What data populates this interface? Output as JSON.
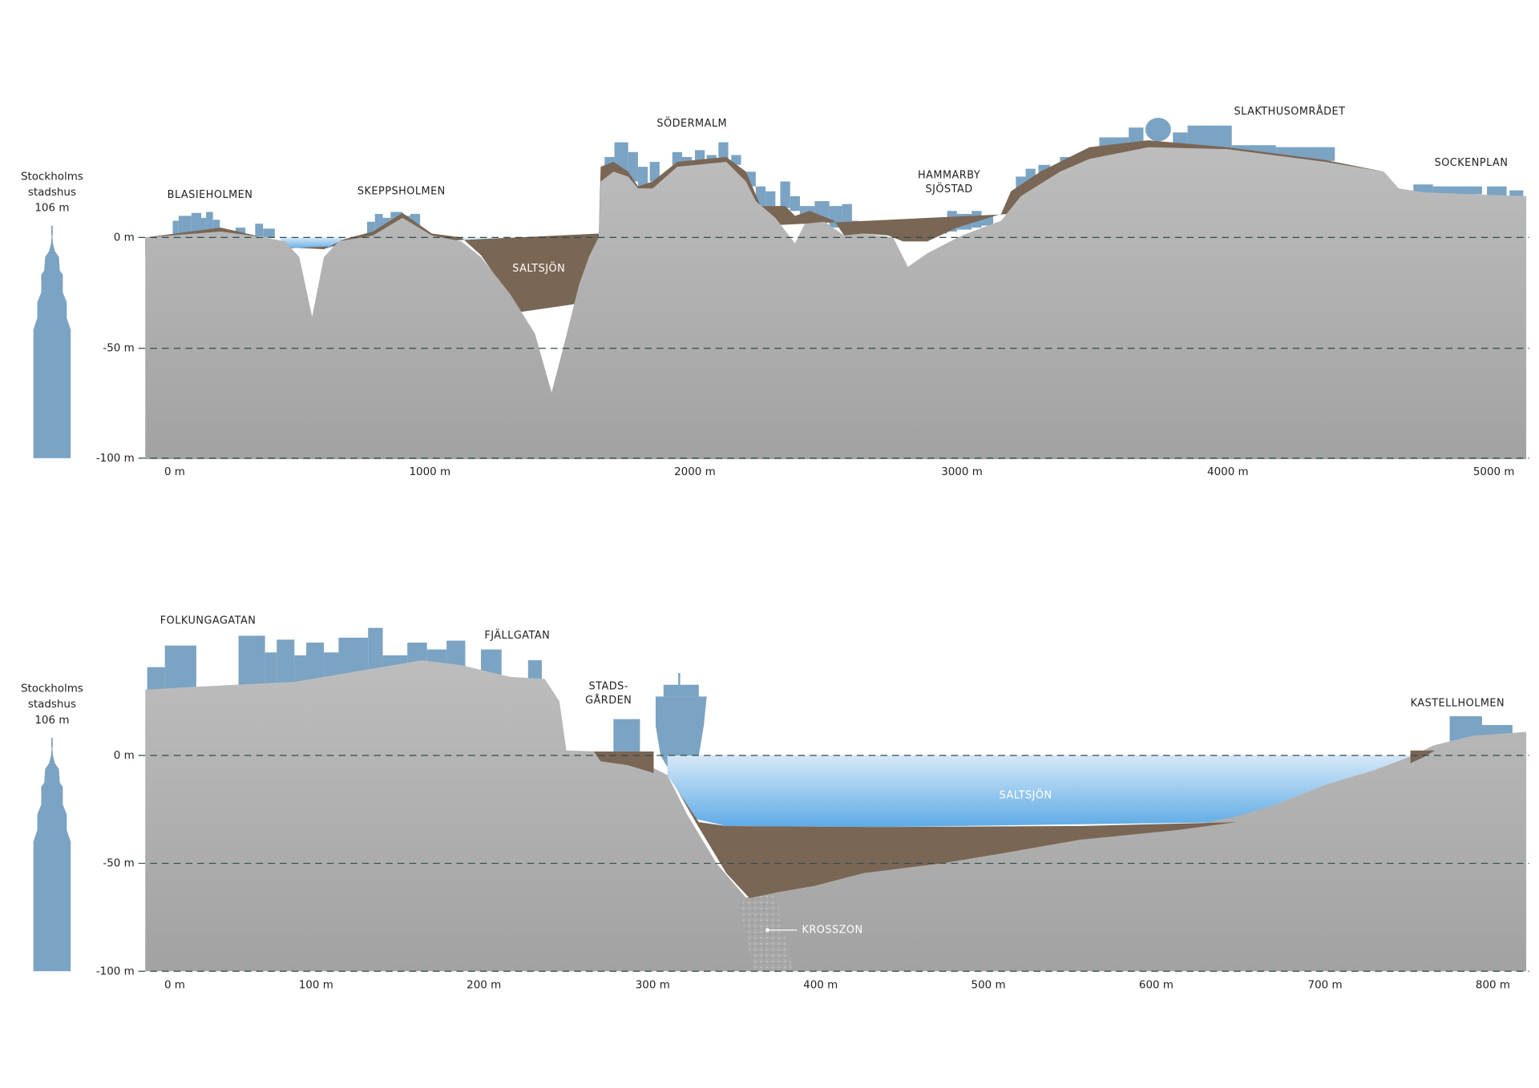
{
  "panels": [
    {
      "tower": {
        "lines": [
          "Stockholms",
          "stadshus",
          "106 m"
        ]
      },
      "depth_labels": [
        "0 m",
        "-50 m",
        "-100 m"
      ],
      "distance_labels": [
        "0 m",
        "1000 m",
        "2000 m",
        "3000 m",
        "4000 m",
        "5000 m"
      ],
      "place_labels": [
        {
          "lines": [
            "BLASIEHOLMEN"
          ]
        },
        {
          "lines": [
            "SKEPPSHOLMEN"
          ]
        },
        {
          "lines": [
            "SÖDERMALM"
          ]
        },
        {
          "lines": [
            "HAMMARBY",
            "SJÖSTAD"
          ]
        },
        {
          "lines": [
            "SLAKTHUSOMRÅDET"
          ]
        },
        {
          "lines": [
            "SOCKENPLAN"
          ]
        }
      ],
      "water_label": "SALTSJÖN"
    },
    {
      "tower": {
        "lines": [
          "Stockholms",
          "stadshus",
          "106 m"
        ]
      },
      "depth_labels": [
        "0 m",
        "-50 m",
        "-100 m"
      ],
      "distance_labels": [
        "0 m",
        "100 m",
        "200 m",
        "300 m",
        "400 m",
        "500 m",
        "600 m",
        "700 m",
        "800 m"
      ],
      "place_labels": [
        {
          "lines": [
            "FOLKUNGAGATAN"
          ]
        },
        {
          "lines": [
            "FJÄLLGATAN"
          ]
        },
        {
          "lines": [
            "STADS-",
            "GÅRDEN"
          ]
        },
        {
          "lines": [
            "KASTELLHOLMEN"
          ]
        }
      ],
      "water_label": "SALTSJÖN",
      "zone_label": "KROSSZON"
    }
  ]
}
